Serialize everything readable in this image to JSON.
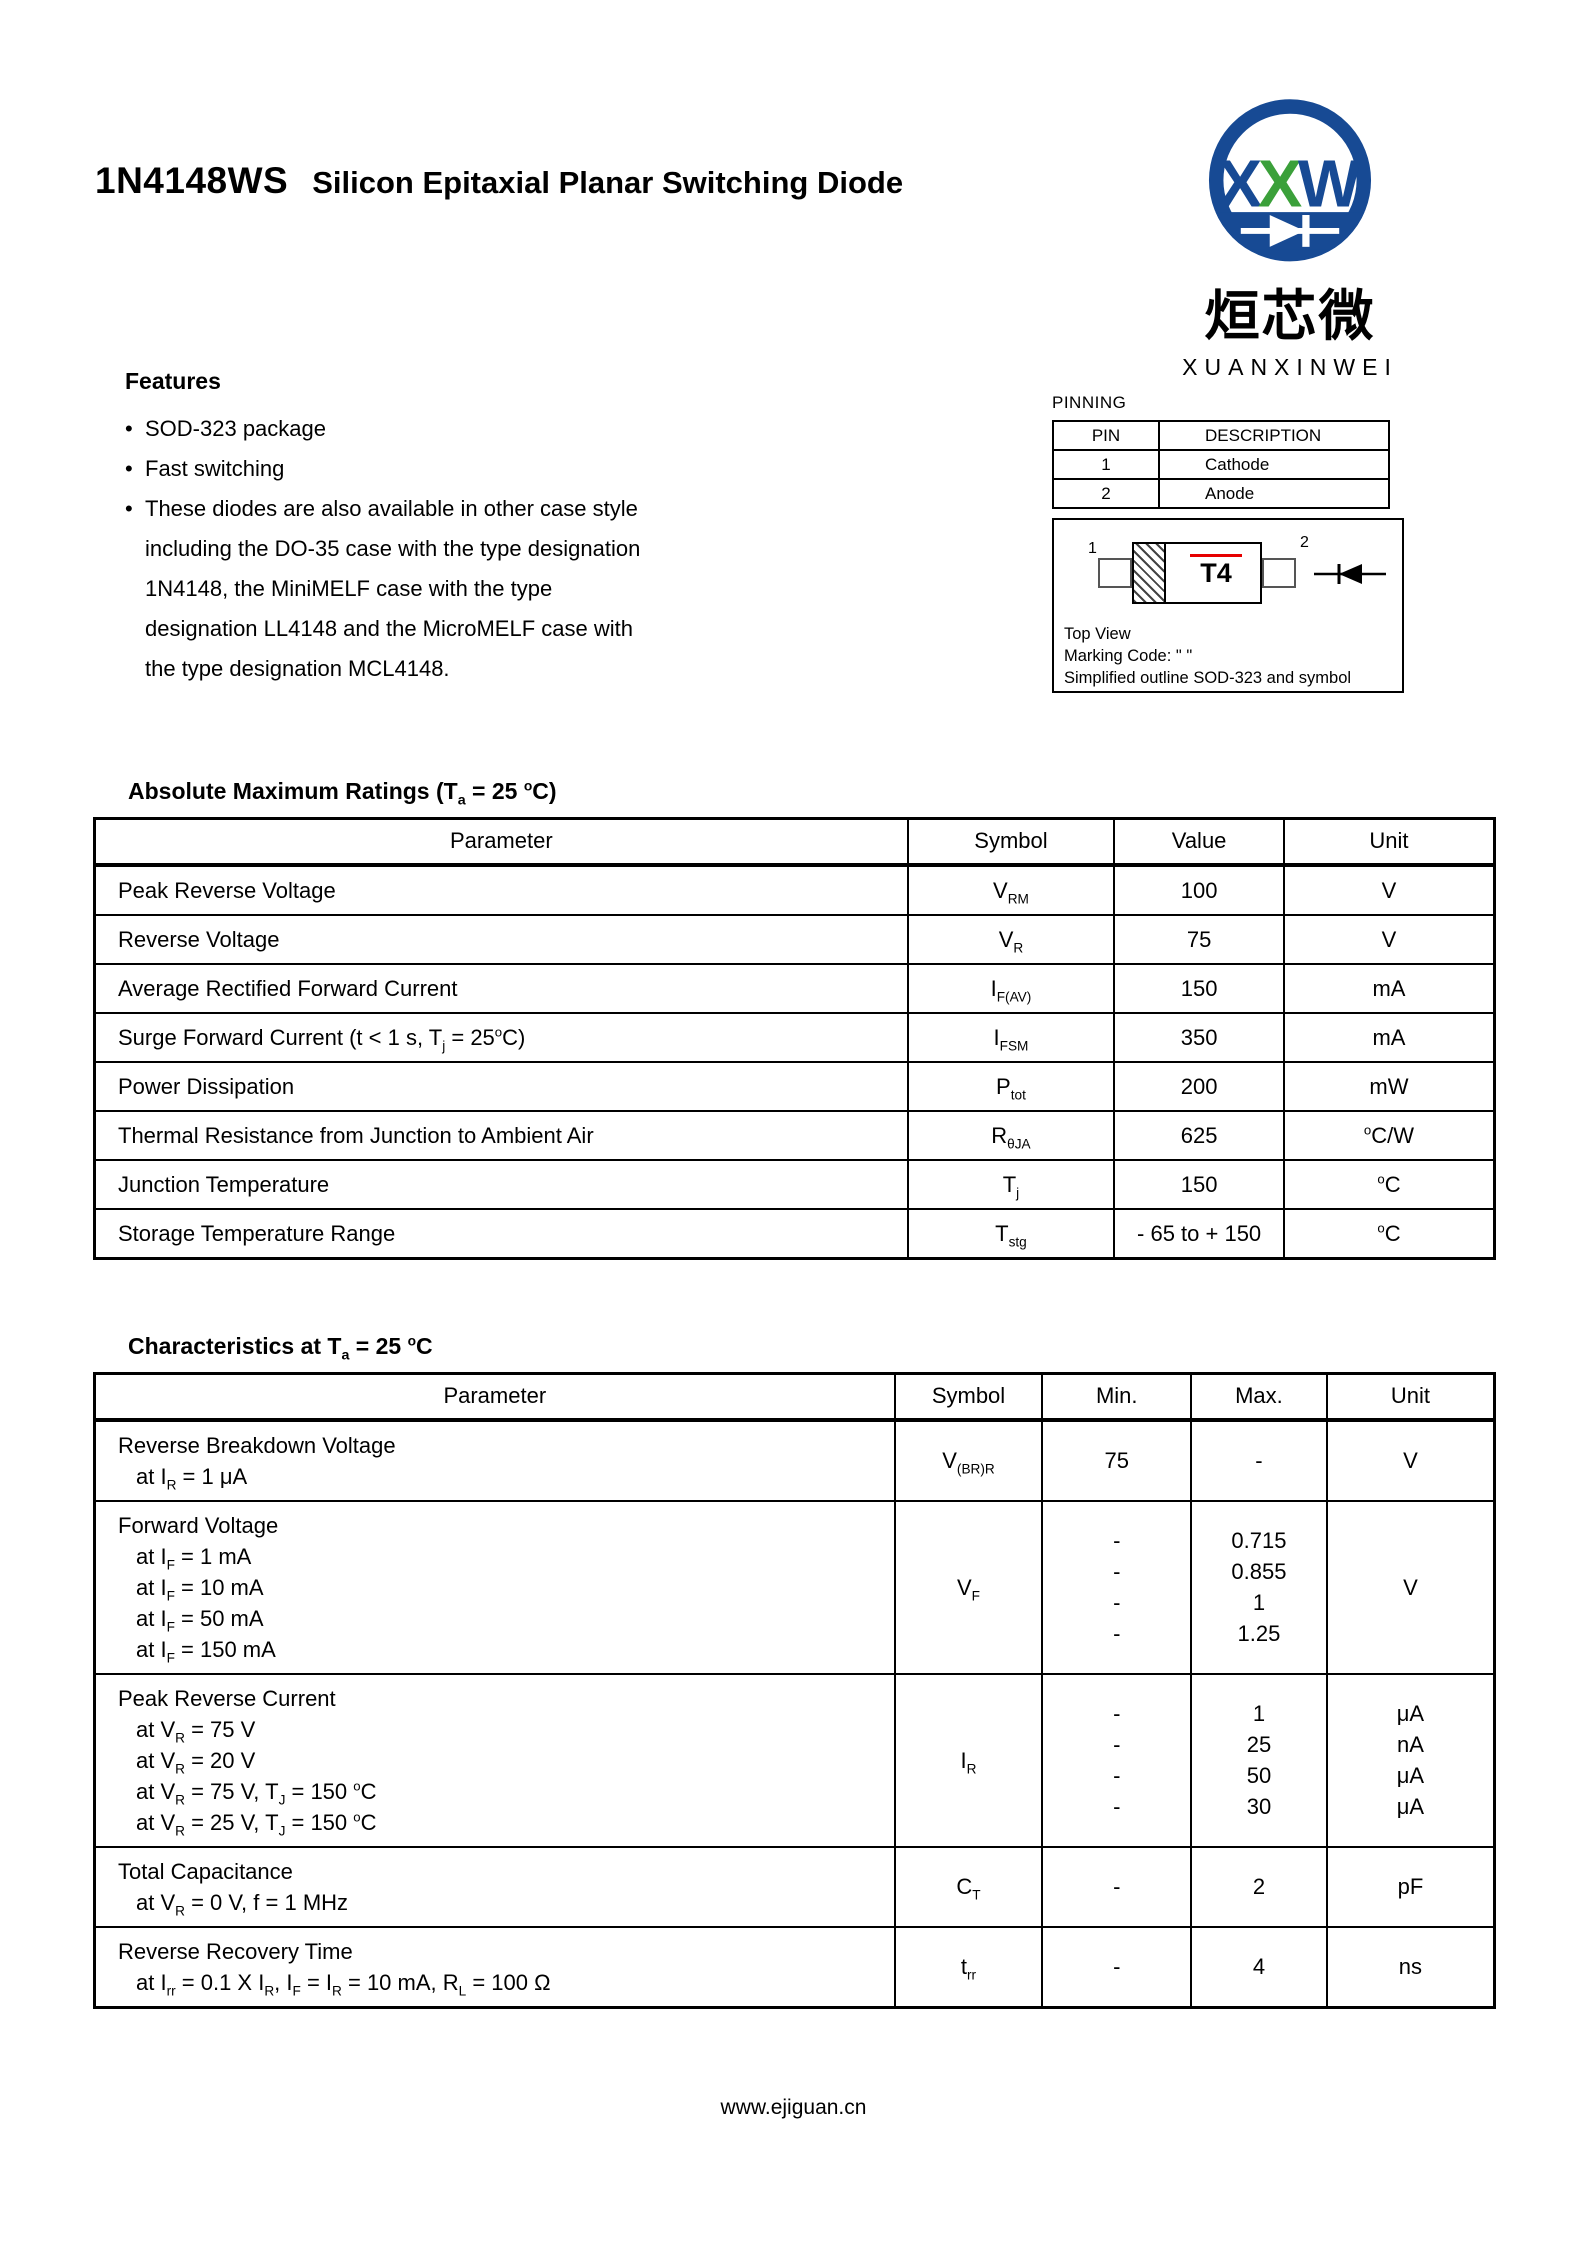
{
  "page": {
    "title_model": "1N4148WS",
    "title_desc": "Silicon Epitaxial Planar Switching Diode",
    "footer": "www.ejiguan.cn"
  },
  "logo": {
    "monogram_x1": "X",
    "monogram_x2": "X",
    "monogram_w": "W",
    "cn_name": "烜芯微",
    "en_name": "XUANXINWEI",
    "blue": "#174a94",
    "green": "#3ba03a"
  },
  "features": {
    "heading": "Features",
    "items": [
      {
        "lines": [
          "SOD-323 package"
        ]
      },
      {
        "lines": [
          "Fast switching"
        ]
      },
      {
        "lines": [
          "These diodes are also available in other case style",
          "including the DO-35 case with the type designation",
          "1N4148, the MiniMELF case with the type",
          "designation LL4148 and the MicroMELF case with",
          "the type designation MCL4148."
        ]
      }
    ]
  },
  "pinning": {
    "heading": "PINNING",
    "headers": [
      "PIN",
      "DESCRIPTION"
    ],
    "rows": [
      {
        "pin": "1",
        "description": "Cathode"
      },
      {
        "pin": "2",
        "description": "Anode"
      }
    ]
  },
  "package": {
    "pin1_label": "1",
    "pin2_label": "2",
    "marking": "T4",
    "caption_lines": [
      "Top View",
      "Marking Code: \"  \"",
      "Simplified outline SOD-323 and symbol"
    ]
  },
  "abs_max": {
    "heading": "Absolute Maximum Ratings (T_{a} = 25 ^{o}C)",
    "headers": [
      "Parameter",
      "Symbol",
      "Value",
      "Unit"
    ],
    "rows": [
      {
        "parameter": "Peak Reverse Voltage",
        "symbol": "V_{RM}",
        "value": "100",
        "unit": "V"
      },
      {
        "parameter": "Reverse Voltage",
        "symbol": "V_{R}",
        "value": "75",
        "unit": "V"
      },
      {
        "parameter": "Average Rectified Forward Current",
        "symbol": "I_{F(AV)}",
        "value": "150",
        "unit": "mA"
      },
      {
        "parameter": "Surge Forward Current (t < 1 s, T_{j} = 25^{o}C)",
        "symbol": "I_{FSM}",
        "value": "350",
        "unit": "mA"
      },
      {
        "parameter": "Power Dissipation",
        "symbol": "P_{tot}",
        "value": "200",
        "unit": "mW"
      },
      {
        "parameter": "Thermal Resistance from Junction to Ambient Air",
        "symbol": "R_{θJA}",
        "value": "625",
        "unit": "^{o}C/W"
      },
      {
        "parameter": "Junction Temperature",
        "symbol": "T_{j}",
        "value": "150",
        "unit": "^{o}C"
      },
      {
        "parameter": "Storage Temperature Range",
        "symbol": "T_{stg}",
        "value": "- 65 to + 150",
        "unit": "^{o}C"
      }
    ]
  },
  "characteristics": {
    "heading": "Characteristics at T_{a} = 25 ^{o}C",
    "headers": [
      "Parameter",
      "Symbol",
      "Min.",
      "Max.",
      "Unit"
    ],
    "rows": [
      {
        "parameter": "Reverse Breakdown Voltage",
        "conditions": [
          "at I_{R} = 1 μA"
        ],
        "symbol": "V_{(BR)R}",
        "min": [
          "75"
        ],
        "max": [
          "-"
        ],
        "unit": [
          "V"
        ]
      },
      {
        "parameter": "Forward Voltage",
        "conditions": [
          "at I_{F} = 1 mA",
          "at I_{F} = 10 mA",
          "at I_{F} = 50 mA",
          "at I_{F} = 150 mA"
        ],
        "symbol": "V_{F}",
        "min": [
          "-",
          "-",
          "-",
          "-"
        ],
        "max": [
          "0.715",
          "0.855",
          "1",
          "1.25"
        ],
        "unit": [
          "V"
        ]
      },
      {
        "parameter": "Peak Reverse Current",
        "conditions": [
          "at V_{R} = 75 V",
          "at V_{R} = 20 V",
          "at V_{R} = 75 V, T_{J} = 150 ^{o}C",
          "at V_{R} = 25 V, T_{J} = 150 ^{o}C"
        ],
        "symbol": "I_{R}",
        "min": [
          "-",
          "-",
          "-",
          "-"
        ],
        "max": [
          "1",
          "25",
          "50",
          "30"
        ],
        "unit": [
          "μA",
          "nA",
          "μA",
          "μA"
        ]
      },
      {
        "parameter": "Total Capacitance",
        "conditions": [
          "at V_{R} = 0 V, f = 1 MHz"
        ],
        "symbol": "C_{T}",
        "min": [
          "-"
        ],
        "max": [
          "2"
        ],
        "unit": [
          "pF"
        ]
      },
      {
        "parameter": "Reverse Recovery Time",
        "conditions": [
          "at I_{rr} = 0.1 X I_{R}, I_{F} = I_{R} = 10 mA, R_{L} = 100 Ω"
        ],
        "symbol": "t_{rr}",
        "min": [
          "-"
        ],
        "max": [
          "4"
        ],
        "unit": [
          "ns"
        ]
      }
    ]
  }
}
